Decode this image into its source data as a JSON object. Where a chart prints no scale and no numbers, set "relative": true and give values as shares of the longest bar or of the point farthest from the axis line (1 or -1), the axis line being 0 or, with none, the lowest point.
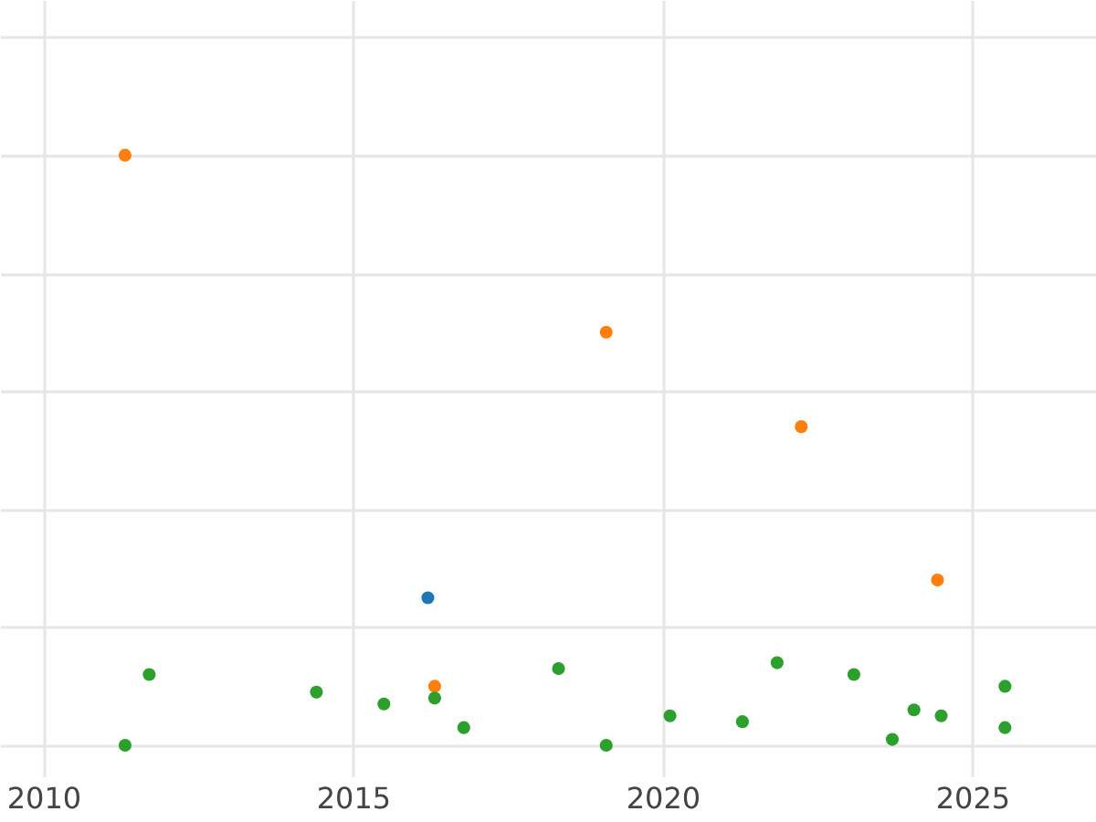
{
  "chart_data": {
    "type": "scatter",
    "relative": true,
    "grid": true,
    "marker": "circle",
    "xlim": [
      2009.3,
      2027
    ],
    "xticks": [
      2010,
      2015,
      2020,
      2025
    ],
    "tick_labels": "x",
    "series": [
      {
        "color": "#ff7f0e",
        "x": [
          2011.32,
          2019.09,
          2022.24,
          2024.44,
          2016.32
        ],
        "values": [
          1.0,
          0.7,
          0.54,
          0.28,
          0.1
        ]
      },
      {
        "color": "#1f77b4",
        "x": [
          2016.21
        ],
        "values": [
          0.25
        ]
      },
      {
        "color": "#2ca02c",
        "x": [
          2011.32,
          2011.71,
          2014.41,
          2015.5,
          2016.32,
          2016.79,
          2018.32,
          2019.09,
          2020.12,
          2021.29,
          2021.85,
          2023.09,
          2023.71,
          2024.06,
          2024.5,
          2025.53,
          2025.53
        ],
        "values": [
          0.0,
          0.12,
          0.09,
          0.07,
          0.08,
          0.03,
          0.13,
          0.0,
          0.05,
          0.04,
          0.14,
          0.12,
          0.01,
          0.06,
          0.05,
          0.1,
          0.03
        ]
      }
    ]
  }
}
